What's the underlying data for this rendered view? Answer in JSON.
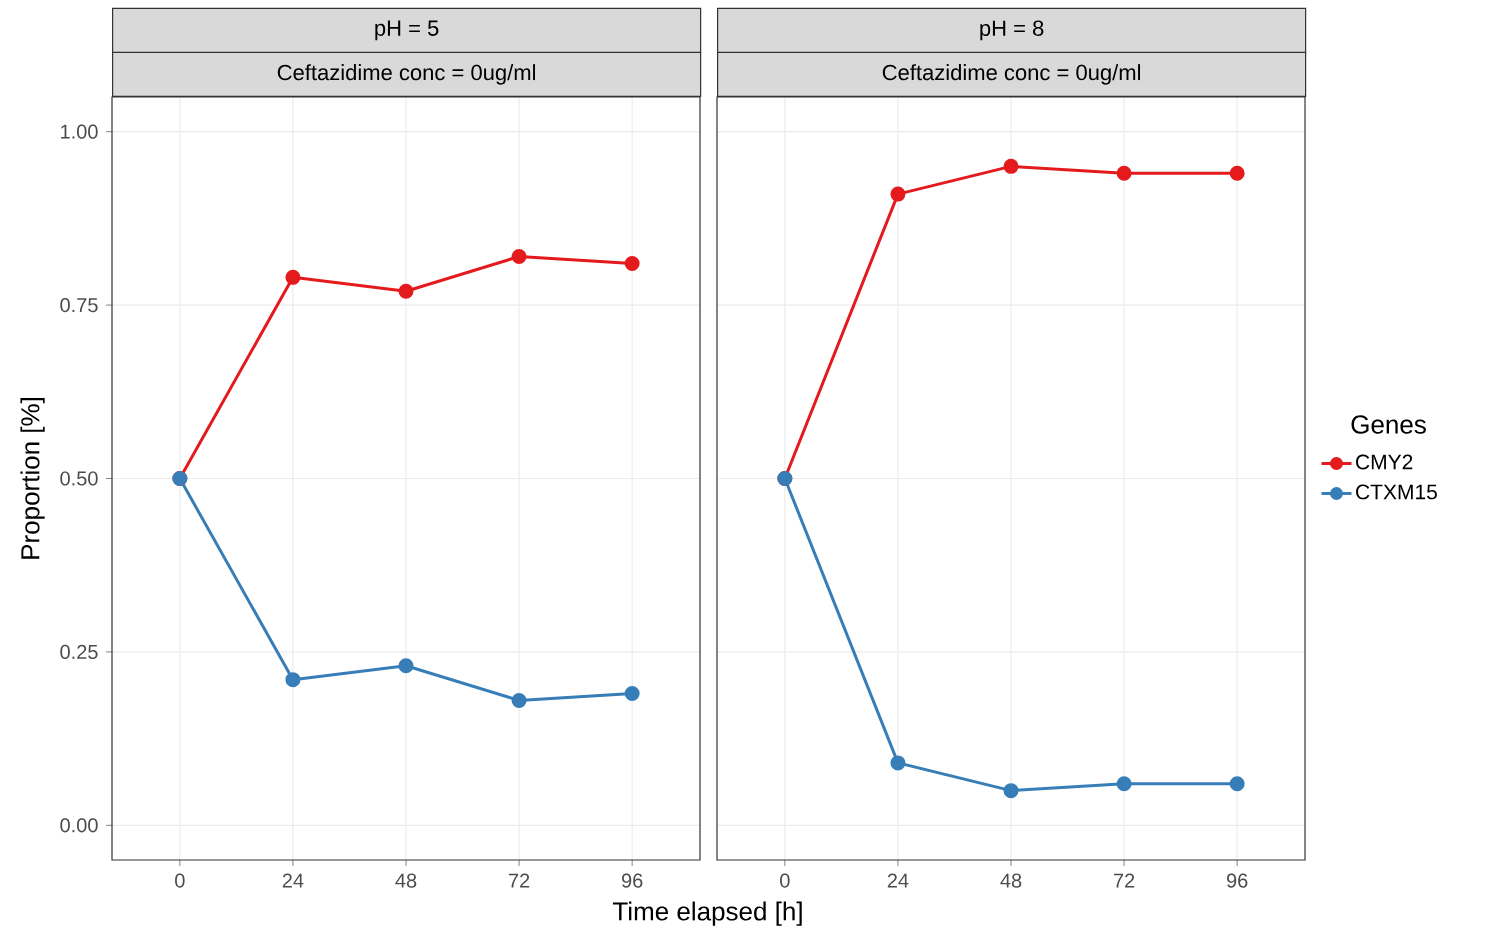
{
  "chart_data": [
    {
      "type": "line",
      "title": "pH = 5",
      "subtitle": "Ceftazidime conc = 0ug/ml",
      "xlabel": "Time elapsed [h]",
      "ylabel": "Proportion [%]",
      "x": [
        0,
        24,
        48,
        72,
        96
      ],
      "series": [
        {
          "color": "#e41a1c",
          "values": [
            0.5,
            0.79,
            0.77,
            0.82,
            0.81
          ]
        },
        {
          "color": "#377eb8",
          "values": [
            0.5,
            0.21,
            0.23,
            0.18,
            0.19
          ]
        }
      ],
      "xlim": [
        -14.4,
        110.4
      ],
      "ylim": [
        -0.05,
        1.05
      ],
      "xticks": [
        0,
        24,
        48,
        72,
        96
      ],
      "yticks": [
        {
          "value": 0,
          "label": "0.00"
        },
        {
          "value": 0.25,
          "label": "0.25"
        },
        {
          "value": 0.5,
          "label": "0.50"
        },
        {
          "value": 0.75,
          "label": "0.75"
        },
        {
          "value": 1,
          "label": "1.00"
        }
      ],
      "grid": true,
      "marker": "circle",
      "line_style": "solid"
    },
    {
      "type": "line",
      "title": "pH = 8",
      "subtitle": "Ceftazidime conc = 0ug/ml",
      "legend_title": "Genes",
      "legend": "right",
      "tick_labels": "x",
      "x": [
        0,
        24,
        48,
        72,
        96
      ],
      "series": [
        {
          "name": "CMY2",
          "color": "#e41a1c",
          "values": [
            0.5,
            0.91,
            0.95,
            0.94,
            0.94
          ]
        },
        {
          "name": "CTXM15",
          "color": "#377eb8",
          "values": [
            0.5,
            0.09,
            0.05,
            0.06,
            0.06
          ]
        }
      ],
      "xlim": [
        -14.4,
        110.4
      ],
      "ylim": [
        -0.05,
        1.05
      ],
      "xticks": [
        0,
        24,
        48,
        72,
        96
      ],
      "yticks": [
        {
          "value": 0,
          "label": null
        },
        {
          "value": 0.25,
          "label": null
        },
        {
          "value": 0.5,
          "label": null
        },
        {
          "value": 0.75,
          "label": null
        },
        {
          "value": 1,
          "label": null
        }
      ],
      "grid": true,
      "marker": "circle",
      "line_style": "solid"
    }
  ]
}
